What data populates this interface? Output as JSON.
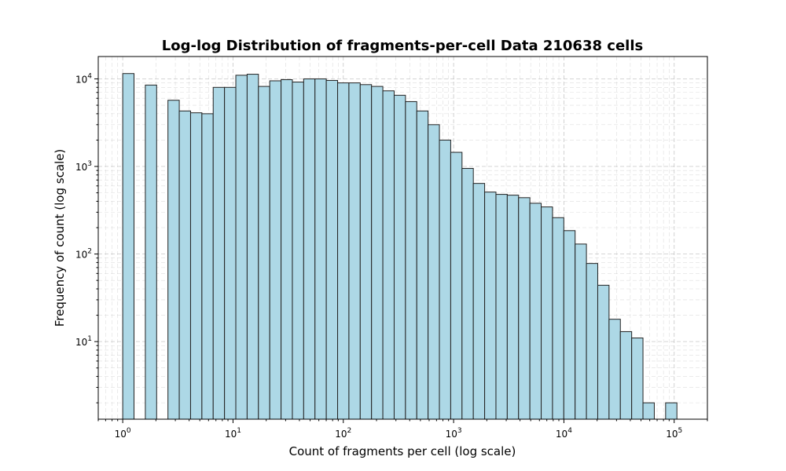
{
  "chart_data": {
    "type": "bar",
    "title": "Log-log Distribution of fragments-per-cell Data 210638 cells",
    "xlabel": "Count of fragments per cell (log scale)",
    "ylabel": "Frequency of count (log scale)",
    "x_scale": "log",
    "y_scale": "log",
    "xlim": [
      0.6,
      200000
    ],
    "ylim": [
      1.3,
      18000
    ],
    "grid": true,
    "bar_color": "#add8e6",
    "edge_color": "#222222",
    "x_ticks": [
      {
        "base": "10",
        "exp": "0",
        "value": 1
      },
      {
        "base": "10",
        "exp": "1",
        "value": 10
      },
      {
        "base": "10",
        "exp": "2",
        "value": 100
      },
      {
        "base": "10",
        "exp": "3",
        "value": 1000
      },
      {
        "base": "10",
        "exp": "4",
        "value": 10000
      },
      {
        "base": "10",
        "exp": "5",
        "value": 100000
      }
    ],
    "y_ticks": [
      {
        "base": "10",
        "exp": "1",
        "value": 10
      },
      {
        "base": "10",
        "exp": "2",
        "value": 100
      },
      {
        "base": "10",
        "exp": "3",
        "value": 1000
      },
      {
        "base": "10",
        "exp": "4",
        "value": 10000
      }
    ],
    "bin_edges": [
      1,
      1.2663,
      1.6035,
      2.0305,
      2.5713,
      3.256,
      4.1232,
      5.2213,
      6.6118,
      8.3727,
      10.6024,
      13.4261,
      17.0017,
      21.5296,
      27.2631,
      34.5237,
      43.7182,
      55.3611,
      70.1045,
      88.7746,
      112.416,
      142.355,
      180.266,
      228.273,
      289.067,
      366.047,
      463.543,
      586.977,
      743.318,
      941.256,
      1191.95,
      1509.32,
      1911.3,
      2420.37,
      3065.04,
      3881.35,
      4915.12,
      6224.13,
      7881.75,
      9980.94,
      12638.9,
      16004.7,
      20267.0,
      25664.4,
      32500.3,
      41156.1,
      52117.6,
      65999.0,
      83575.6,
      105834
    ],
    "counts": [
      11500,
      0,
      8500,
      0,
      5700,
      4300,
      4100,
      4000,
      8000,
      8000,
      11000,
      11300,
      8200,
      9500,
      9800,
      9200,
      10000,
      10000,
      9600,
      9000,
      9000,
      8600,
      8200,
      7300,
      6500,
      5500,
      4300,
      3000,
      2000,
      1450,
      950,
      640,
      510,
      480,
      470,
      440,
      380,
      345,
      260,
      185,
      130,
      78,
      44,
      18,
      13,
      11,
      2,
      0,
      2
    ]
  }
}
